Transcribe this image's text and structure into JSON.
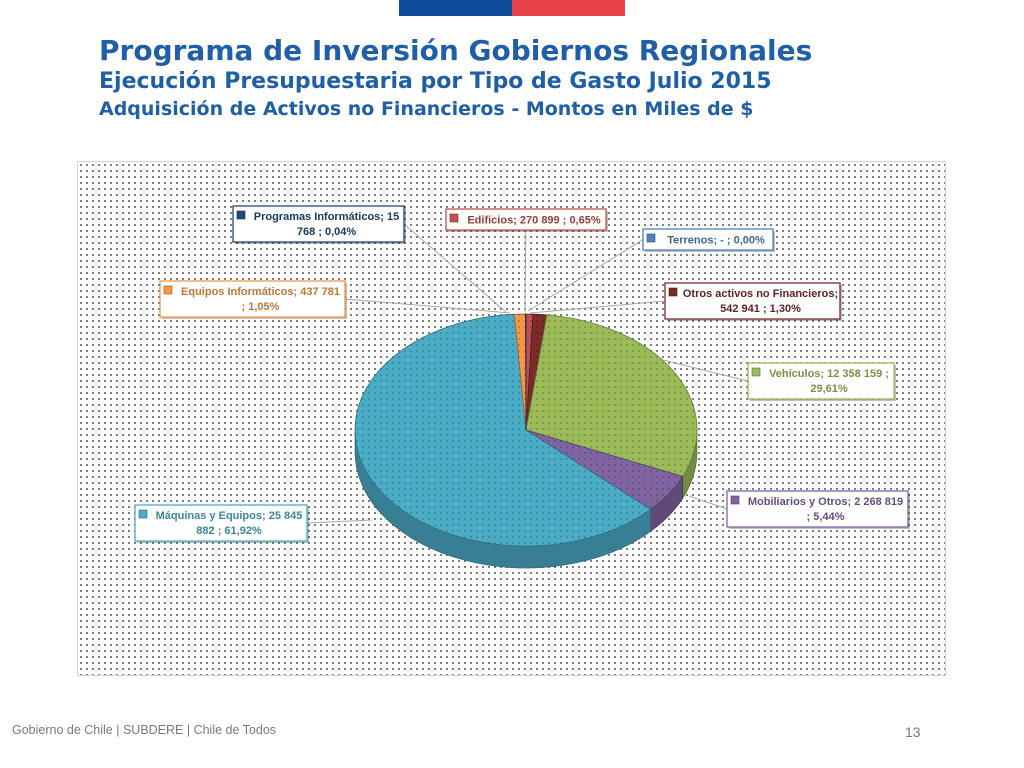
{
  "slide": {
    "title": "Programa de Inversión Gobiernos Regionales",
    "subtitle": "Ejecución Presupuestaria por Tipo de Gasto Julio 2015",
    "subtitle2": "Adquisición de Activos no Financieros - Montos en Miles de $",
    "footer": "Gobierno de Chile | SUBDERE | Chile de Todos",
    "page_number": "13"
  },
  "chart_data": {
    "type": "pie",
    "title": "",
    "series": [
      {
        "name": "Edificios",
        "value": 270899,
        "percent": 0.65,
        "color": "#c0504d",
        "label": [
          "Edificios;  270 899 ; 0,65%"
        ]
      },
      {
        "name": "Terrenos",
        "value": 0,
        "percent": 0.0,
        "color": "#4f81bd",
        "label": [
          "Terrenos;  -   ; 0,00%"
        ]
      },
      {
        "name": "Otros activos no Financieros",
        "value": 542941,
        "percent": 1.3,
        "color": "#7b2c2a",
        "label": [
          "Otros activos no Financieros;",
          "542 941 ; 1,30%"
        ]
      },
      {
        "name": "Vehículos",
        "value": 12358159,
        "percent": 29.61,
        "color": "#9bbb59",
        "label": [
          "Vehículos;  12 358 159 ;",
          "29,61%"
        ]
      },
      {
        "name": "Mobiliarios y Otros",
        "value": 2268819,
        "percent": 5.44,
        "color": "#8064a2",
        "label": [
          "Mobiliarios y Otros;  2 268 819",
          "; 5,44%"
        ]
      },
      {
        "name": "Máquinas y Equipos",
        "value": 25845882,
        "percent": 61.92,
        "color": "#4bacc6",
        "label": [
          "Máquinas y Equipos;  25 845",
          "882 ; 61,92%"
        ]
      },
      {
        "name": "Equipos Informáticos",
        "value": 437781,
        "percent": 1.05,
        "color": "#f79646",
        "label": [
          "Equipos Informáticos;  437 781",
          "; 1,05%"
        ]
      },
      {
        "name": "Programas Informáticos",
        "value": 15768,
        "percent": 0.04,
        "color": "#1f497d",
        "label": [
          "Programas Informáticos;  15",
          "768 ; 0,04%"
        ]
      }
    ]
  }
}
